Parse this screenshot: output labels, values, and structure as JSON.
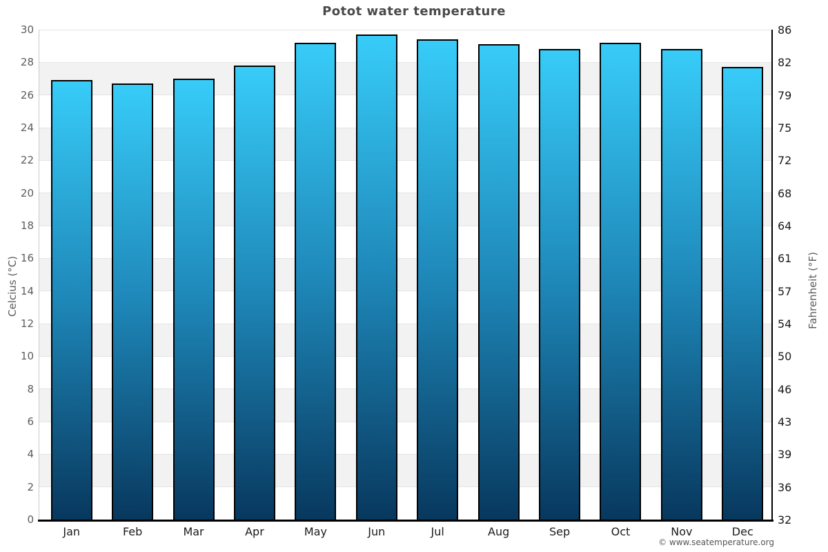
{
  "page": {
    "title": "Potot water temperature"
  },
  "chart_data": {
    "type": "bar",
    "title": "Potot water temperature",
    "categories": [
      "Jan",
      "Feb",
      "Mar",
      "Apr",
      "May",
      "Jun",
      "Jul",
      "Aug",
      "Sep",
      "Oct",
      "Nov",
      "Dec"
    ],
    "values": [
      26.9,
      26.7,
      27.0,
      27.8,
      29.2,
      29.7,
      29.4,
      29.1,
      28.8,
      29.2,
      28.8,
      27.7
    ],
    "unit": "°C",
    "ylabel": "Celcius (°C)",
    "y2label": "Fahrenheit (°F)",
    "ylim": [
      0,
      30
    ],
    "yticks": [
      0,
      2,
      4,
      6,
      8,
      10,
      12,
      14,
      16,
      18,
      20,
      22,
      24,
      26,
      28,
      30
    ],
    "y2ticks": [
      32,
      36,
      39,
      43,
      46,
      50,
      54,
      57,
      61,
      64,
      68,
      72,
      75,
      79,
      82,
      86
    ],
    "grid": "alternating 2-degree horizontal bands, light gray gridlines",
    "legend": "none",
    "colors": {
      "bar_gradient_top": "#38ccf8",
      "bar_gradient_mid": "#1e87b8",
      "bar_gradient_bottom": "#08385e",
      "bar_border": "#000000",
      "band": "#f2f2f2",
      "gridline": "#e4e4e4",
      "title_text": "#4a4a4a",
      "left_tick_text": "#5c5c5c",
      "right_tick_text": "#1a1a1a"
    }
  },
  "footer": {
    "credit": "© www.seatemperature.org"
  }
}
